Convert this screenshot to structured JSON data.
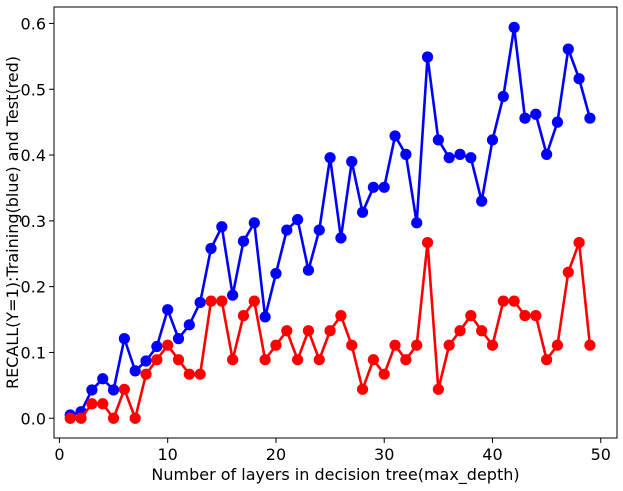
{
  "chart_data": {
    "type": "line",
    "xlabel": "Number of layers in decision tree(max_depth)",
    "ylabel": "RECALL(Y=1):Training(blue) and Test(red)",
    "xlim": [
      -0.5,
      51.5
    ],
    "ylim": [
      -0.03,
      0.625
    ],
    "xticks": [
      0,
      10,
      20,
      30,
      40,
      50
    ],
    "yticks": [
      0.0,
      0.1,
      0.2,
      0.3,
      0.4,
      0.5,
      0.6
    ],
    "grid": false,
    "x": [
      1,
      2,
      3,
      4,
      5,
      6,
      7,
      8,
      9,
      10,
      11,
      12,
      13,
      14,
      15,
      16,
      17,
      18,
      19,
      20,
      21,
      22,
      23,
      24,
      25,
      26,
      27,
      28,
      29,
      30,
      31,
      32,
      33,
      34,
      35,
      36,
      37,
      38,
      39,
      40,
      41,
      42,
      43,
      44,
      45,
      46,
      47,
      48,
      49
    ],
    "series": [
      {
        "color": "#0000ff",
        "values": [
          0.005,
          0.01,
          0.043,
          0.06,
          0.043,
          0.121,
          0.072,
          0.087,
          0.109,
          0.165,
          0.121,
          0.142,
          0.176,
          0.258,
          0.291,
          0.187,
          0.269,
          0.297,
          0.154,
          0.22,
          0.286,
          0.302,
          0.225,
          0.286,
          0.396,
          0.274,
          0.39,
          0.313,
          0.351,
          0.351,
          0.429,
          0.401,
          0.297,
          0.549,
          0.423,
          0.396,
          0.401,
          0.396,
          0.33,
          0.423,
          0.489,
          0.594,
          0.456,
          0.462,
          0.401,
          0.45,
          0.561,
          0.516,
          0.456
        ]
      },
      {
        "color": "#ff0000",
        "values": [
          0.0,
          0.0,
          0.022,
          0.022,
          0.0,
          0.044,
          0.0,
          0.067,
          0.089,
          0.111,
          0.089,
          0.067,
          0.067,
          0.178,
          0.178,
          0.089,
          0.156,
          0.178,
          0.089,
          0.111,
          0.133,
          0.089,
          0.133,
          0.089,
          0.133,
          0.156,
          0.111,
          0.044,
          0.089,
          0.067,
          0.111,
          0.089,
          0.111,
          0.267,
          0.044,
          0.111,
          0.133,
          0.156,
          0.133,
          0.111,
          0.178,
          0.178,
          0.156,
          0.156,
          0.089,
          0.111,
          0.222,
          0.267,
          0.111
        ]
      }
    ]
  }
}
